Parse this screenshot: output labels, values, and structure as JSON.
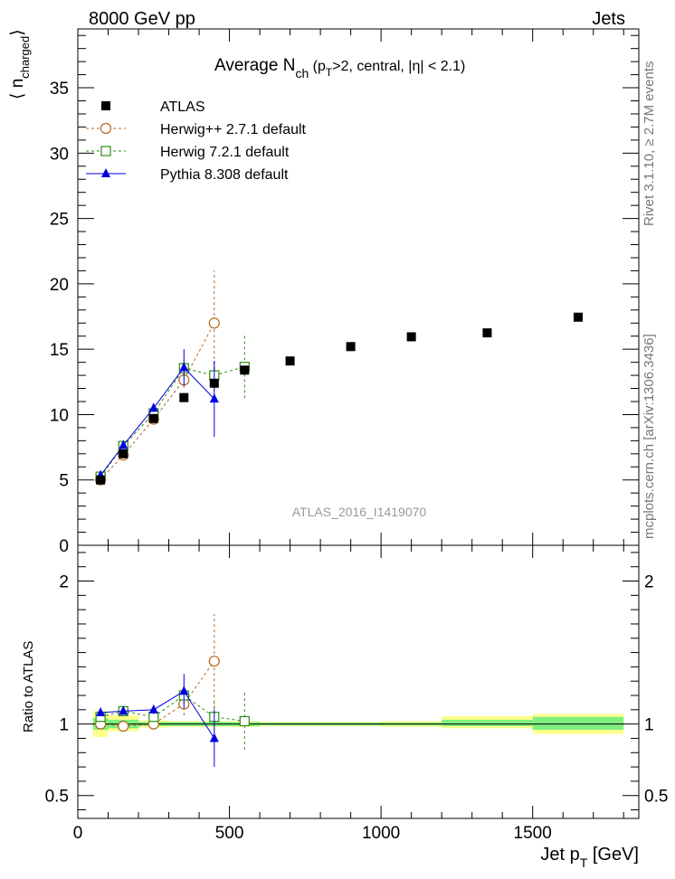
{
  "header": {
    "left": "8000 GeV pp",
    "right": "Jets"
  },
  "side_labels": {
    "upper": "Rivet 3.1.10, ≥ 2.7M events",
    "lower": "mcplots.cern.ch [arXiv:1306.3436]"
  },
  "watermark": "ATLAS_2016_I1419070",
  "title": {
    "main": "Average N",
    "sub": "ch",
    "rest": " (p",
    "rest_sub": "T",
    "tail": ">2, central, |η| < 2.1)"
  },
  "colors": {
    "atlas": "#000000",
    "herwigpp": "#b8651d",
    "herwig7": "#2e8b14",
    "pythia": "#0000e0",
    "band_inner": "#7ff07f",
    "band_outer": "#ffff8c"
  },
  "chart_data": [
    {
      "type": "scatter",
      "panel": "main",
      "ylabel_main": "⟨ n",
      "ylabel_sub": "charged",
      "ylabel_close": "⟩",
      "xlim": [
        0,
        1850
      ],
      "ylim": [
        0,
        39.5
      ],
      "yticks": [
        0,
        5,
        10,
        15,
        20,
        25,
        30,
        35
      ],
      "legend_position": "top-left",
      "series": [
        {
          "name": "ATLAS",
          "key": "atlas",
          "marker": "filled-square",
          "x": [
            75,
            150,
            250,
            350,
            450,
            550,
            700,
            900,
            1100,
            1350,
            1650
          ],
          "y": [
            5.0,
            7.0,
            9.7,
            11.3,
            12.4,
            13.4,
            14.1,
            15.2,
            15.95,
            16.25,
            17.45
          ],
          "err": [
            0.1,
            0.1,
            0.1,
            0.1,
            0.1,
            0.1,
            0.1,
            0.1,
            0.1,
            0.1,
            0.1
          ]
        },
        {
          "name": "Herwig++ 2.7.1 default",
          "key": "herwigpp",
          "marker": "open-circle",
          "line": "dashed",
          "x": [
            75,
            150,
            250,
            350,
            450
          ],
          "y": [
            5.0,
            6.9,
            9.65,
            12.65,
            17.0
          ],
          "err": [
            0.1,
            0.1,
            0.2,
            0.6,
            4.0
          ]
        },
        {
          "name": "Herwig 7.2.1 default",
          "key": "herwig7",
          "marker": "open-square",
          "line": "dashed",
          "x": [
            75,
            150,
            250,
            350,
            450,
            550
          ],
          "y": [
            5.25,
            7.6,
            10.1,
            13.55,
            13.0,
            13.65
          ],
          "err": [
            0.1,
            0.15,
            0.25,
            0.6,
            1.2,
            2.4
          ]
        },
        {
          "name": "Pythia 8.308 default",
          "key": "pythia",
          "marker": "filled-triangle",
          "line": "solid",
          "x": [
            75,
            150,
            250,
            350,
            450
          ],
          "y": [
            5.35,
            7.65,
            10.5,
            13.6,
            11.2
          ],
          "err": [
            0.1,
            0.15,
            0.3,
            1.4,
            2.9
          ]
        }
      ]
    },
    {
      "type": "scatter",
      "panel": "ratio",
      "ylabel": "Ratio to ATLAS",
      "xlabel_main": "Jet p",
      "xlabel_sub": "T",
      "xlabel_tail": " [GeV]",
      "xlim": [
        0,
        1850
      ],
      "ylim": [
        0.34,
        2.25
      ],
      "yticks": [
        0.5,
        1,
        2
      ],
      "xticks": [
        0,
        500,
        1000,
        1500
      ],
      "bands": [
        {
          "x0": 50,
          "x1": 100,
          "inner": [
            0.96,
            1.04
          ],
          "outer": [
            0.91,
            1.09
          ]
        },
        {
          "x0": 100,
          "x1": 200,
          "inner": [
            0.97,
            1.03
          ],
          "outer": [
            0.95,
            1.06
          ]
        },
        {
          "x0": 200,
          "x1": 300,
          "inner": [
            0.985,
            1.015
          ],
          "outer": [
            0.975,
            1.025
          ]
        },
        {
          "x0": 300,
          "x1": 400,
          "inner": [
            0.985,
            1.015
          ],
          "outer": [
            0.98,
            1.02
          ]
        },
        {
          "x0": 400,
          "x1": 500,
          "inner": [
            0.985,
            1.015
          ],
          "outer": [
            0.98,
            1.02
          ]
        },
        {
          "x0": 500,
          "x1": 600,
          "inner": [
            0.985,
            1.015
          ],
          "outer": [
            0.98,
            1.02
          ]
        },
        {
          "x0": 600,
          "x1": 800,
          "inner": [
            0.99,
            1.01
          ],
          "outer": [
            0.985,
            1.015
          ]
        },
        {
          "x0": 800,
          "x1": 1000,
          "inner": [
            0.99,
            1.01
          ],
          "outer": [
            0.985,
            1.015
          ]
        },
        {
          "x0": 1000,
          "x1": 1200,
          "inner": [
            0.99,
            1.01
          ],
          "outer": [
            0.98,
            1.02
          ]
        },
        {
          "x0": 1200,
          "x1": 1500,
          "inner": [
            0.985,
            1.03
          ],
          "outer": [
            0.97,
            1.055
          ]
        },
        {
          "x0": 1500,
          "x1": 1800,
          "inner": [
            0.96,
            1.05
          ],
          "outer": [
            0.93,
            1.07
          ]
        }
      ],
      "series": [
        {
          "name": "Herwig++ 2.7.1 default",
          "key": "herwigpp",
          "marker": "open-circle",
          "line": "dashed",
          "x": [
            75,
            150,
            250,
            350,
            450
          ],
          "y": [
            1.0,
            0.985,
            1.0,
            1.14,
            1.44
          ],
          "err": [
            0.02,
            0.02,
            0.03,
            0.08,
            0.33
          ]
        },
        {
          "name": "Herwig 7.2.1 default",
          "key": "herwig7",
          "marker": "open-square",
          "line": "dashed",
          "x": [
            75,
            150,
            250,
            350,
            450,
            550
          ],
          "y": [
            1.05,
            1.09,
            1.05,
            1.2,
            1.05,
            1.02
          ],
          "err": [
            0.02,
            0.02,
            0.03,
            0.06,
            0.1,
            0.2
          ]
        },
        {
          "name": "Pythia 8.308 default",
          "key": "pythia",
          "marker": "filled-triangle",
          "line": "solid",
          "x": [
            75,
            150,
            250,
            350,
            450
          ],
          "y": [
            1.08,
            1.09,
            1.1,
            1.23,
            0.9
          ],
          "err": [
            0.02,
            0.02,
            0.03,
            0.12,
            0.2
          ]
        }
      ]
    }
  ]
}
